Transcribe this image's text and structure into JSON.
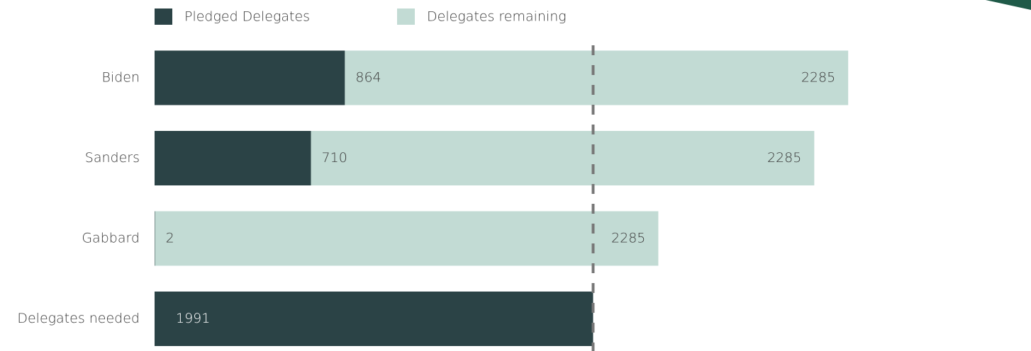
{
  "chart_data": {
    "type": "stacked_barh",
    "categories": [
      "Biden",
      "Sanders",
      "Gabbard",
      "Delegates needed"
    ],
    "series": [
      {
        "name": "Pledged Delegates",
        "color": "#2b4346",
        "values": [
          864,
          710,
          2,
          1991
        ]
      },
      {
        "name": "Delegates remaining",
        "color": "#c2dbd4",
        "values": [
          2285,
          2285,
          2285,
          null
        ]
      }
    ],
    "xlim": [
      0,
      3979
    ],
    "legend": "top-left"
  }
}
